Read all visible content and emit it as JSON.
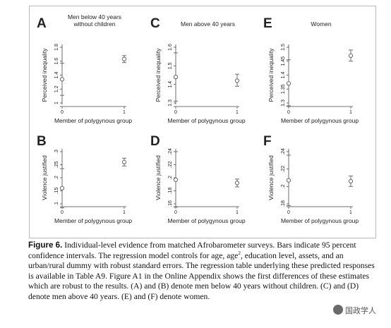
{
  "chart_data": [
    {
      "type": "scatter",
      "panel": "A",
      "title": "Men below 40 years\nwithout children",
      "xlabel": "Member of polygynous group",
      "ylabel": "Perceived inequality",
      "x_ticks": [
        "0",
        "1"
      ],
      "y_ticks": [
        "1",
        "1.2",
        "1.4",
        "1.6",
        "1.8"
      ],
      "ylim": [
        1.0,
        1.8
      ],
      "points": [
        {
          "x": 0,
          "y": 1.34,
          "ci_low": 1.11,
          "ci_high": 1.57
        },
        {
          "x": 1,
          "y": 1.63,
          "ci_low": 1.58,
          "ci_high": 1.68
        }
      ]
    },
    {
      "type": "scatter",
      "panel": "C",
      "title": "Men above 40 years",
      "xlabel": "Member of polygynous group",
      "ylabel": "Perceived inequality",
      "x_ticks": [
        "0",
        "1"
      ],
      "y_ticks": [
        "1.3",
        "1.4",
        "1.5",
        "1.6"
      ],
      "ylim": [
        1.3,
        1.6
      ],
      "points": [
        {
          "x": 0,
          "y": 1.44,
          "ci_low": 1.31,
          "ci_high": 1.57
        },
        {
          "x": 1,
          "y": 1.42,
          "ci_low": 1.39,
          "ci_high": 1.455
        }
      ]
    },
    {
      "type": "scatter",
      "panel": "E",
      "title": "Women",
      "xlabel": "Member of polygynous group",
      "ylabel": "Perceived inequality",
      "x_ticks": [
        "0",
        "1"
      ],
      "y_ticks": [
        "1.3",
        "1.35",
        "1.4",
        "1.45",
        "1.5"
      ],
      "ylim": [
        1.3,
        1.5
      ],
      "points": [
        {
          "x": 0,
          "y": 1.37,
          "ci_low": 1.29,
          "ci_high": 1.455
        },
        {
          "x": 1,
          "y": 1.47,
          "ci_low": 1.45,
          "ci_high": 1.49
        }
      ]
    },
    {
      "type": "scatter",
      "panel": "B",
      "title": "",
      "xlabel": "Member of polygynous group",
      "ylabel": "Violence justified",
      "x_ticks": [
        "0",
        "1"
      ],
      "y_ticks": [
        ".1",
        ".15",
        ".2",
        ".25",
        ".3"
      ],
      "ylim": [
        0.1,
        0.3
      ],
      "points": [
        {
          "x": 0,
          "y": 0.16,
          "ci_low": 0.085,
          "ci_high": 0.235
        },
        {
          "x": 1,
          "y": 0.26,
          "ci_low": 0.245,
          "ci_high": 0.275
        }
      ]
    },
    {
      "type": "scatter",
      "panel": "D",
      "title": "",
      "xlabel": "Member of polygynous group",
      "ylabel": "Violence justified",
      "x_ticks": [
        "0",
        "1"
      ],
      "y_ticks": [
        ".16",
        ".18",
        ".2",
        ".22",
        ".24"
      ],
      "ylim": [
        0.16,
        0.24
      ],
      "points": [
        {
          "x": 0,
          "y": 0.197,
          "ci_low": 0.155,
          "ci_high": 0.24
        },
        {
          "x": 1,
          "y": 0.192,
          "ci_low": 0.186,
          "ci_high": 0.198
        }
      ]
    },
    {
      "type": "scatter",
      "panel": "F",
      "title": "",
      "xlabel": "Member of polygynous group",
      "ylabel": "Violence justified",
      "x_ticks": [
        "0",
        "1"
      ],
      "y_ticks": [
        ".18",
        ".2",
        ".22",
        ".24"
      ],
      "ylim": [
        0.18,
        0.24
      ],
      "points": [
        {
          "x": 0,
          "y": 0.207,
          "ci_low": 0.178,
          "ci_high": 0.236
        },
        {
          "x": 1,
          "y": 0.206,
          "ci_low": 0.2,
          "ci_high": 0.212
        }
      ]
    }
  ],
  "colors": {
    "marker": "#6b6b6b",
    "axis": "#444444",
    "text": "#222222"
  },
  "caption": {
    "label": "Figure 6.",
    "text_1": " Individual-level evidence from matched Afrobarometer surveys. Bars indicate 95 percent confidence intervals. The regression model controls for age, age",
    "sup": "2",
    "text_2": ", education level, assets, and an urban/rural dummy with robust standard errors. The regression table underlying these predicted responses is available in Table A9. Figure A1 in the Online Appendix shows the first differences of these estimates which are robust to the results. (A) and (B) denote men below 40 years without children. (C) and (D) denote men above 40 years. (E) and (F) denote women."
  },
  "watermark": {
    "text": "国政学人"
  }
}
